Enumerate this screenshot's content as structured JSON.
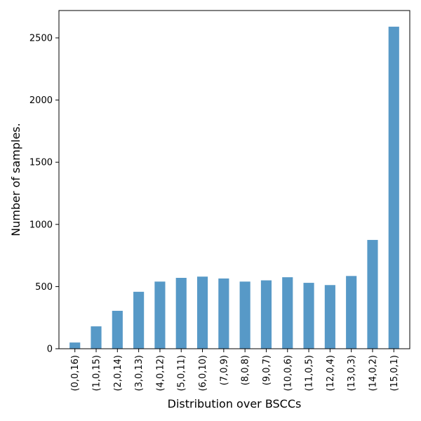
{
  "chart_data": {
    "type": "bar",
    "title": "",
    "xlabel": "Distribution over BSCCs",
    "ylabel": "Number of samples.",
    "categories": [
      "(0,0,16)",
      "(1,0,15)",
      "(2,0,14)",
      "(3,0,13)",
      "(4,0,12)",
      "(5,0,11)",
      "(6,0,10)",
      "(7,0,9)",
      "(8,0,8)",
      "(9,0,7)",
      "(10,0,6)",
      "(11,0,5)",
      "(12,0,4)",
      "(13,0,3)",
      "(14,0,2)",
      "(15,0,1)"
    ],
    "values": [
      50,
      180,
      305,
      458,
      540,
      570,
      580,
      565,
      540,
      550,
      575,
      530,
      512,
      585,
      875,
      2590
    ],
    "ylim": [
      0,
      2720
    ],
    "yticks": [
      0,
      500,
      1000,
      1500,
      2000,
      2500
    ],
    "bar_color": "#5799c7",
    "grid": false,
    "legend": "none"
  }
}
